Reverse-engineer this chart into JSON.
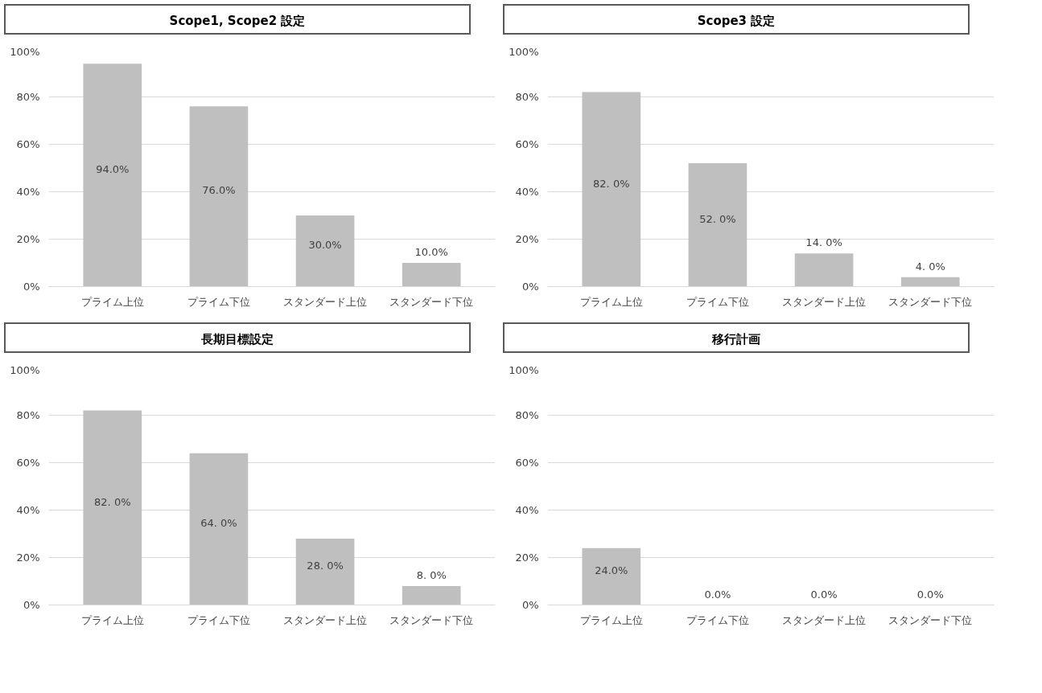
{
  "chart_data": [
    {
      "type": "bar",
      "title": "Scope1, Scope2 設定",
      "categories": [
        "プライム上位",
        "プライム下位",
        "スタンダード上位",
        "スタンダード下位"
      ],
      "values": [
        94,
        76,
        30,
        10
      ],
      "value_labels": [
        "94.0%",
        "76.0%",
        "30.0%",
        "10.0%"
      ],
      "color": "#bfbfbf",
      "ylim": [
        0,
        100
      ],
      "yticks": [
        {
          "value": 0,
          "label": "0%"
        },
        {
          "value": 20,
          "label": "20%"
        },
        {
          "value": 40,
          "label": "40%"
        },
        {
          "value": 60,
          "label": "60%"
        },
        {
          "value": 80,
          "label": "80%"
        },
        {
          "value": 100,
          "label": "100%"
        }
      ],
      "grid": "y"
    },
    {
      "type": "bar",
      "title": "Scope3 設定",
      "categories": [
        "プライム上位",
        "プライム下位",
        "スタンダード上位",
        "スタンダード下位"
      ],
      "values": [
        82,
        52,
        14,
        4
      ],
      "value_labels": [
        "82. 0%",
        "52. 0%",
        "14. 0%",
        "4. 0%"
      ],
      "color": "#bfbfbf",
      "ylim": [
        0,
        100
      ],
      "yticks": [
        {
          "value": 0,
          "label": "0%"
        },
        {
          "value": 20,
          "label": "20%"
        },
        {
          "value": 40,
          "label": "40%"
        },
        {
          "value": 60,
          "label": "60%"
        },
        {
          "value": 80,
          "label": "80%"
        },
        {
          "value": 100,
          "label": "100%"
        }
      ],
      "grid": "y"
    },
    {
      "type": "bar",
      "title": "長期目標設定",
      "categories": [
        "プライム上位",
        "プライム下位",
        "スタンダード上位",
        "スタンダード下位"
      ],
      "values": [
        82,
        64,
        28,
        8
      ],
      "value_labels": [
        "82. 0%",
        "64. 0%",
        "28. 0%",
        "8. 0%"
      ],
      "color": "#bfbfbf",
      "ylim": [
        0,
        100
      ],
      "yticks": [
        {
          "value": 0,
          "label": "0%"
        },
        {
          "value": 20,
          "label": "20%"
        },
        {
          "value": 40,
          "label": "40%"
        },
        {
          "value": 60,
          "label": "60%"
        },
        {
          "value": 80,
          "label": "80%"
        },
        {
          "value": 100,
          "label": "100%"
        }
      ],
      "grid": "y"
    },
    {
      "type": "bar",
      "title": "移行計画",
      "categories": [
        "プライム上位",
        "プライム下位",
        "スタンダード上位",
        "スタンダード下位"
      ],
      "values": [
        24,
        0,
        0,
        0
      ],
      "value_labels": [
        "24.0%",
        "0.0%",
        "0.0%",
        "0.0%"
      ],
      "color": "#bfbfbf",
      "ylim": [
        0,
        100
      ],
      "yticks": [
        {
          "value": 0,
          "label": "0%"
        },
        {
          "value": 20,
          "label": "20%"
        },
        {
          "value": 40,
          "label": "40%"
        },
        {
          "value": 60,
          "label": "60%"
        },
        {
          "value": 80,
          "label": "80%"
        },
        {
          "value": 100,
          "label": "100%"
        }
      ],
      "grid": "y"
    }
  ]
}
